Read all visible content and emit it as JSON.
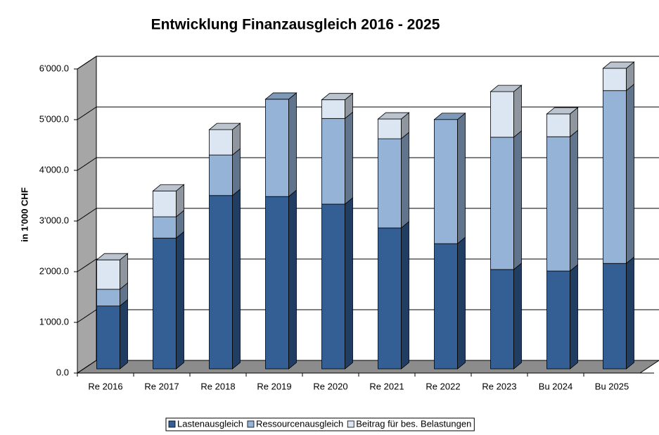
{
  "chart_data": {
    "type": "bar",
    "stacked": true,
    "title": "Entwicklung Finanzausgleich 2016 - 2025",
    "y_label": "in 1'000 CHF",
    "categories": [
      "Re 2016",
      "Re 2017",
      "Re 2018",
      "Re 2019",
      "Re 2020",
      "Re 2021",
      "Re 2022",
      "Re 2023",
      "Bu 2024",
      "Bu 2025"
    ],
    "series": [
      {
        "name": "Lastenausgleich",
        "color": "#335f95",
        "values": [
          1240,
          2580,
          3420,
          3400,
          3250,
          2780,
          2470,
          1960,
          1930,
          2080
        ]
      },
      {
        "name": "Ressourcenausgleich",
        "color": "#95b3d7",
        "values": [
          330,
          420,
          800,
          1920,
          1690,
          1760,
          2450,
          2610,
          2650,
          3410
        ]
      },
      {
        "name": "Beitrag für bes. Belastungen",
        "color": "#dce6f2",
        "values": [
          580,
          510,
          500,
          0,
          370,
          390,
          0,
          900,
          450,
          440
        ]
      }
    ],
    "ylim": [
      0,
      6000
    ],
    "yticks": [
      {
        "value": 0,
        "label": "0.0"
      },
      {
        "value": 1000,
        "label": "1'000.0"
      },
      {
        "value": 2000,
        "label": "2'000.0"
      },
      {
        "value": 3000,
        "label": "3'000.0"
      },
      {
        "value": 4000,
        "label": "4'000.0"
      },
      {
        "value": 5000,
        "label": "5'000.0"
      },
      {
        "value": 6000,
        "label": "6'000.0"
      }
    ],
    "grid": true
  }
}
